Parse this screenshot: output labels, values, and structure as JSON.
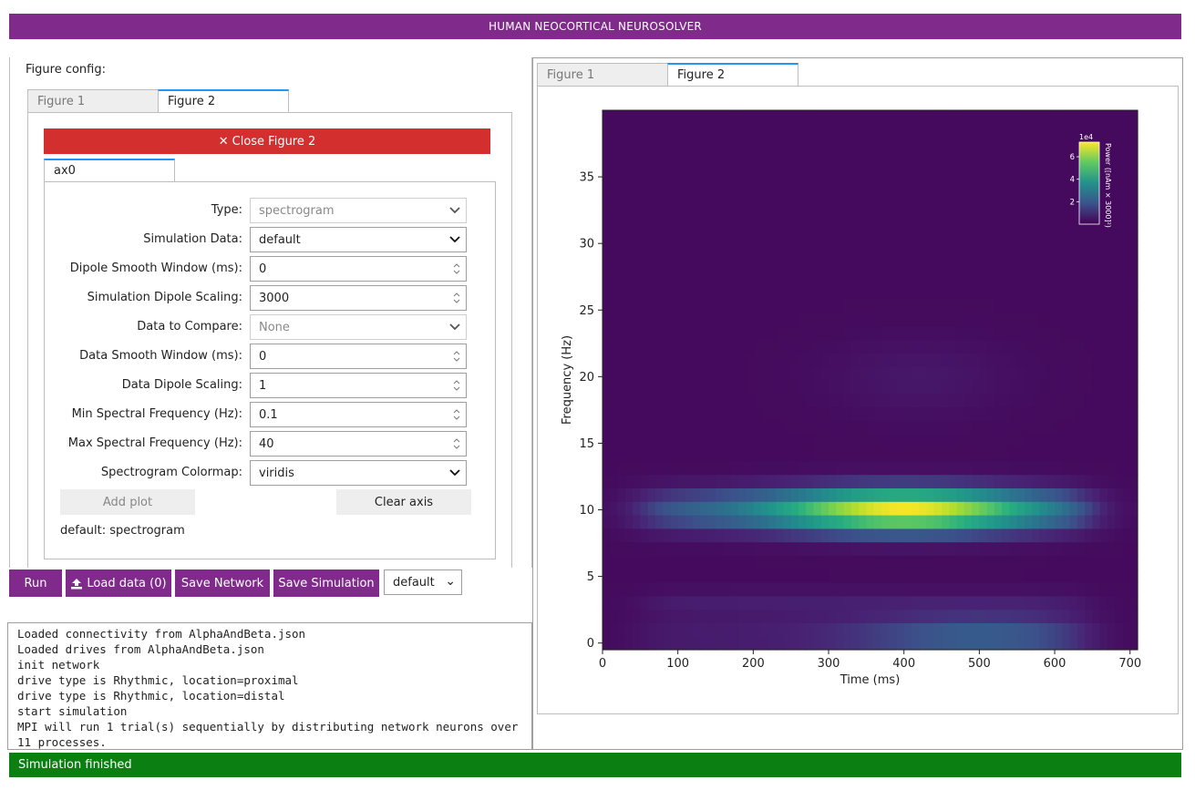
{
  "app": {
    "title": "HUMAN NEOCORTICAL NEUROSOLVER"
  },
  "figure_config": {
    "label": "Figure config:",
    "tabs": [
      {
        "label": "Figure 1"
      },
      {
        "label": "Figure 2"
      }
    ],
    "close_button": "Close Figure 2",
    "axis_tabs": [
      {
        "label": "ax0"
      }
    ],
    "fields": [
      {
        "label": "Type:",
        "value": "spectrogram",
        "kind": "select",
        "disabled": true
      },
      {
        "label": "Simulation Data:",
        "value": "default",
        "kind": "select",
        "disabled": false
      },
      {
        "label": "Dipole Smooth Window (ms):",
        "value": "0",
        "kind": "number",
        "disabled": false
      },
      {
        "label": "Simulation Dipole Scaling:",
        "value": "3000",
        "kind": "number",
        "disabled": false
      },
      {
        "label": "Data to Compare:",
        "value": "None",
        "kind": "select",
        "disabled": true
      },
      {
        "label": "Data Smooth Window (ms):",
        "value": "0",
        "kind": "number",
        "disabled": false
      },
      {
        "label": "Data Dipole Scaling:",
        "value": "1",
        "kind": "number",
        "disabled": false
      },
      {
        "label": "Min Spectral Frequency (Hz):",
        "value": "0.1",
        "kind": "number",
        "disabled": false
      },
      {
        "label": "Max Spectral Frequency (Hz):",
        "value": "40",
        "kind": "number",
        "disabled": false
      },
      {
        "label": "Spectrogram Colormap:",
        "value": "viridis",
        "kind": "select",
        "disabled": false
      }
    ],
    "add_plot": "Add plot",
    "clear_axis": "Clear axis",
    "summary": "default: spectrogram"
  },
  "actions": {
    "run": "Run",
    "load_data": "Load data (0)",
    "save_network": "Save Network",
    "save_simulation": "Save Simulation",
    "simulation_select": "default"
  },
  "log": {
    "lines": [
      "Loaded connectivity from AlphaAndBeta.json",
      "Loaded drives from AlphaAndBeta.json",
      "init network",
      "drive type is Rhythmic, location=proximal",
      "drive type is Rhythmic, location=distal",
      "start simulation",
      "MPI will run 1 trial(s) sequentially by distributing network neurons over 11 processes."
    ]
  },
  "status": {
    "text": "Simulation finished",
    "color": "#0b7f12"
  },
  "figure_panel": {
    "tabs": [
      {
        "label": "Figure 1"
      },
      {
        "label": "Figure 2"
      }
    ]
  },
  "chart_data": {
    "type": "heatmap",
    "title": "",
    "xlabel": "Time (ms)",
    "ylabel": "Frequency (Hz)",
    "xlim": [
      0,
      710
    ],
    "ylim": [
      -0.5,
      40
    ],
    "xticks": [
      0,
      100,
      200,
      300,
      400,
      500,
      600,
      700
    ],
    "yticks": [
      0,
      5,
      10,
      15,
      20,
      25,
      30,
      35
    ],
    "colormap": "viridis",
    "colorbar": {
      "label": "Power ([nAm × 3000]²)",
      "exponent": "1e4",
      "ticks": [
        2,
        4,
        6
      ],
      "range": [
        0,
        7.3
      ],
      "placement": "top-right"
    },
    "features": [
      {
        "name": "alpha band",
        "freq_hz": 10,
        "time_ms": [
          50,
          650
        ],
        "peak_time_ms": 400,
        "peak_power_1e4": 7
      },
      {
        "name": "low band",
        "freq_hz": 0.5,
        "time_ms": [
          50,
          650
        ],
        "peak_time_ms": 500,
        "peak_power_1e4": 2
      }
    ],
    "grid": false
  }
}
